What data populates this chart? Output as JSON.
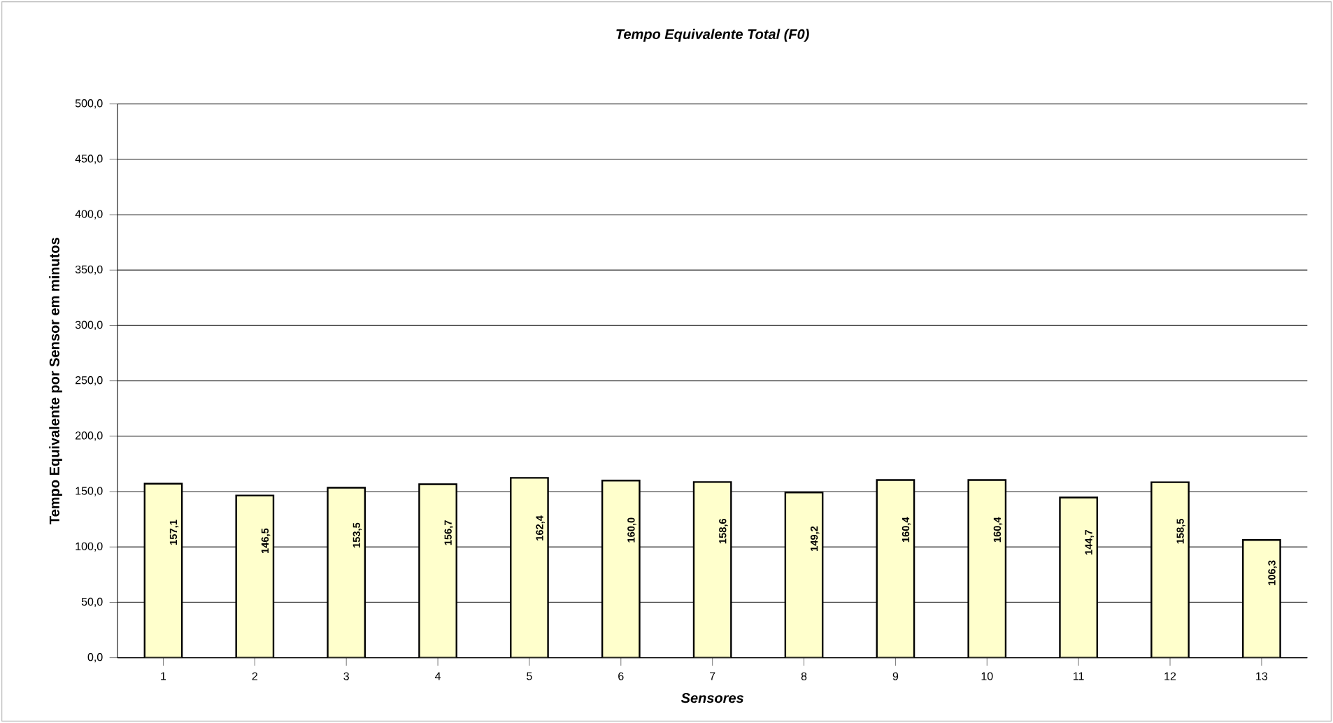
{
  "chart_data": {
    "type": "bar",
    "title": "Tempo Equivalente Total (F0)",
    "xlabel": "Sensores",
    "ylabel": "Tempo Equivalente por Sensor em minutos",
    "categories": [
      "1",
      "2",
      "3",
      "4",
      "5",
      "6",
      "7",
      "8",
      "9",
      "10",
      "11",
      "12",
      "13"
    ],
    "values": [
      157.1,
      146.5,
      153.5,
      156.7,
      162.4,
      160.0,
      158.6,
      149.2,
      160.4,
      160.4,
      144.7,
      158.5,
      106.3
    ],
    "value_labels": [
      "157,1",
      "146,5",
      "153,5",
      "156,7",
      "162,4",
      "160,0",
      "158,6",
      "149,2",
      "160,4",
      "160,4",
      "144,7",
      "158,5",
      "106,3"
    ],
    "color": "#ffffcc",
    "ylim": [
      0,
      500
    ],
    "yticks": [
      {
        "value": 0,
        "label": "0,0"
      },
      {
        "value": 50,
        "label": "50,0"
      },
      {
        "value": 100,
        "label": "100,0"
      },
      {
        "value": 150,
        "label": "150,0"
      },
      {
        "value": 200,
        "label": "200,0"
      },
      {
        "value": 250,
        "label": "250,0"
      },
      {
        "value": 300,
        "label": "300,0"
      },
      {
        "value": 350,
        "label": "350,0"
      },
      {
        "value": 400,
        "label": "400,0"
      },
      {
        "value": 450,
        "label": "450,0"
      },
      {
        "value": 500,
        "label": "500,0"
      }
    ],
    "grid": "y"
  }
}
